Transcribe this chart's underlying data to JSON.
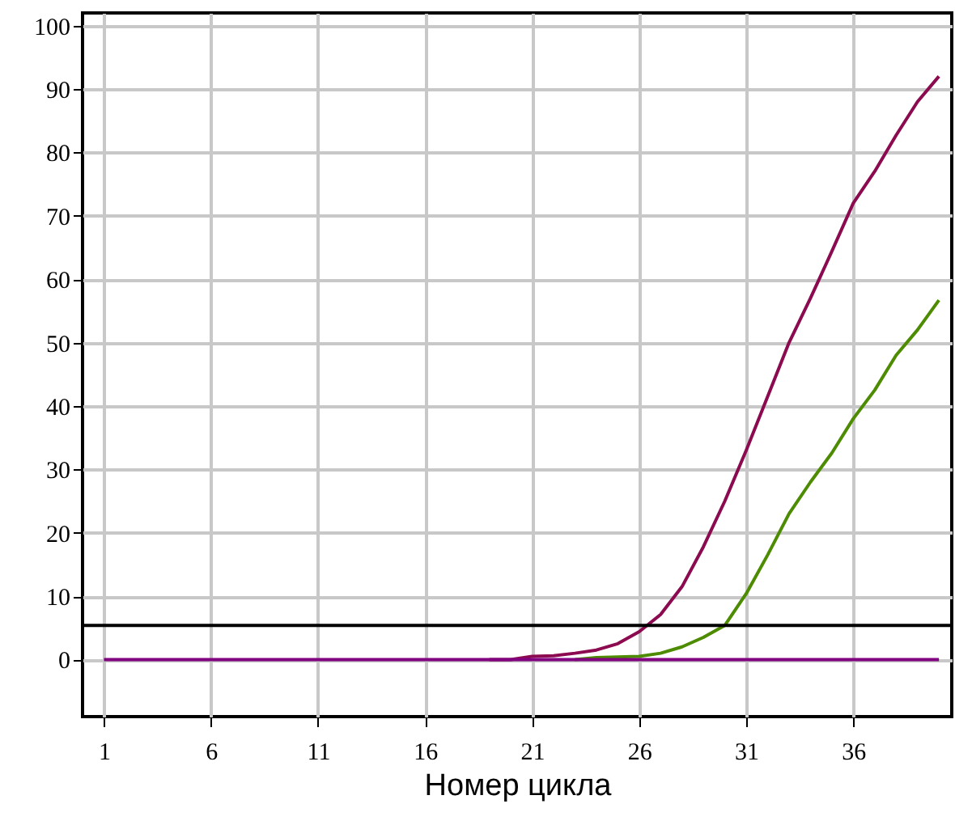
{
  "chart_data": {
    "type": "line",
    "xlabel": "Номер цикла",
    "x": [
      1,
      2,
      3,
      4,
      5,
      6,
      7,
      8,
      9,
      10,
      11,
      12,
      13,
      14,
      15,
      16,
      17,
      18,
      19,
      20,
      21,
      22,
      23,
      24,
      25,
      26,
      27,
      28,
      29,
      30,
      31,
      32,
      33,
      34,
      35,
      36,
      37,
      38,
      39,
      40
    ],
    "series": [
      {
        "color": "#8b0a50",
        "values": [
          null,
          null,
          null,
          null,
          null,
          null,
          null,
          null,
          null,
          null,
          null,
          null,
          null,
          null,
          null,
          null,
          null,
          null,
          0,
          0,
          0.5,
          0.6,
          1,
          1.5,
          2.5,
          4.4,
          7.1,
          11.5,
          17.8,
          25,
          33,
          41.5,
          50,
          57,
          64.4,
          72,
          77,
          82.7,
          88,
          92
        ]
      },
      {
        "color": "#4d8c00",
        "values": [
          null,
          null,
          null,
          null,
          null,
          null,
          null,
          null,
          null,
          null,
          null,
          null,
          null,
          null,
          null,
          null,
          null,
          null,
          null,
          null,
          null,
          null,
          0,
          0.3,
          0.4,
          0.5,
          1,
          2,
          3.5,
          5.4,
          10.4,
          16.5,
          23,
          28,
          32.6,
          38,
          42.5,
          48,
          52,
          56.7
        ]
      },
      {
        "color": "#800080",
        "values": [
          0,
          0,
          0,
          0,
          0,
          0,
          0,
          0,
          0,
          0,
          0,
          0,
          0,
          0,
          0,
          0,
          0,
          0,
          0,
          0,
          0,
          0,
          0,
          0,
          0,
          0,
          0,
          0,
          0,
          0,
          0,
          0,
          0,
          0,
          0,
          0,
          0,
          0,
          0,
          0
        ]
      }
    ],
    "xlim": [
      0,
      40.6
    ],
    "xticks": [
      1,
      6,
      11,
      16,
      21,
      26,
      31,
      36
    ],
    "ylim": [
      -9,
      102
    ],
    "yticks": [
      0,
      10,
      20,
      30,
      40,
      50,
      60,
      70,
      80,
      90,
      100
    ],
    "ref_lines": [
      {
        "axis": "y",
        "value": 5.4,
        "color": "#000000"
      }
    ],
    "grid": true,
    "legend": false,
    "line_style": "solid",
    "marker": "none"
  }
}
